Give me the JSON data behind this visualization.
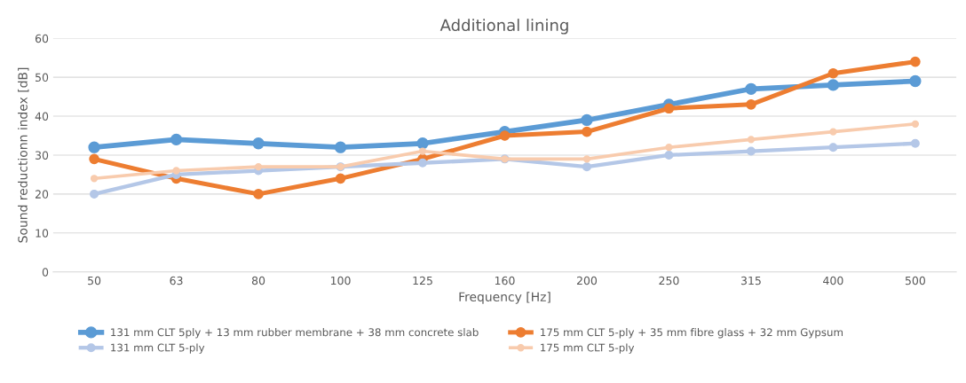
{
  "chart_data": {
    "type": "line",
    "title": "Additional lining",
    "xlabel": "Frequency [Hz]",
    "ylabel": "Sound reductionn index [dB]",
    "categories": [
      "50",
      "63",
      "80",
      "100",
      "125",
      "160",
      "200",
      "250",
      "315",
      "400",
      "500"
    ],
    "series": [
      {
        "name": "131 mm CLT 5ply + 13 mm rubber membrane + 38 mm concrete slab",
        "color": "#5b9bd5",
        "values": [
          32,
          34,
          33,
          32,
          33,
          36,
          39,
          43,
          47,
          48,
          49
        ]
      },
      {
        "name": "175 mm CLT 5-ply + 35 mm fibre glass + 32 mm Gypsum",
        "color": "#ed7d31",
        "values": [
          29,
          24,
          20,
          24,
          29,
          35,
          36,
          42,
          43,
          51,
          54
        ]
      },
      {
        "name": "131 mm CLT 5-ply",
        "color": "#b4c7e7",
        "values": [
          20,
          25,
          26,
          27,
          28,
          29,
          27,
          30,
          31,
          32,
          33
        ]
      },
      {
        "name": "175 mm CLT 5-ply",
        "color": "#f8cbad",
        "values": [
          24,
          26,
          27,
          27,
          31,
          29,
          29,
          32,
          34,
          36,
          38
        ]
      }
    ],
    "ylim": [
      0,
      60
    ],
    "yticks": [
      0,
      10,
      20,
      30,
      40,
      50,
      60
    ],
    "grid": "y",
    "legend": "bottom",
    "marker": "circle",
    "line_style": "solid"
  }
}
